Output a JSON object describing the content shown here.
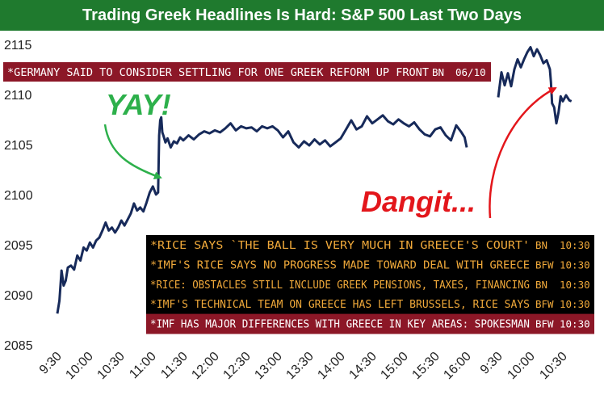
{
  "chart_data": {
    "type": "line",
    "title": "Trading Greek Headlines Is Hard: S&P 500 Last Two Days",
    "xlabel": "",
    "ylabel": "",
    "ylim": [
      2085,
      2115
    ],
    "yticks": [
      2085,
      2090,
      2095,
      2100,
      2105,
      2110,
      2115
    ],
    "xticks": [
      "9:30",
      "10:00",
      "10:30",
      "11:00",
      "11:30",
      "12:00",
      "12:30",
      "13:00",
      "13:30",
      "14:00",
      "14:30",
      "15:00",
      "15:30",
      "16:00",
      "9:30",
      "10:00",
      "10:30"
    ],
    "grid": false,
    "legend": "none",
    "line_color": "#172a5a",
    "series": [
      {
        "name": "",
        "segments": [
          {
            "day": 1,
            "points": [
              [
                "9:30",
                2088.2
              ],
              [
                "9:32",
                2089.5
              ],
              [
                "9:34",
                2092.5
              ],
              [
                "9:36",
                2091.0
              ],
              [
                "9:38",
                2091.5
              ],
              [
                "9:40",
                2092.8
              ],
              [
                "9:43",
                2093.0
              ],
              [
                "9:46",
                2092.6
              ],
              [
                "9:49",
                2094.0
              ],
              [
                "9:52",
                2093.5
              ],
              [
                "9:55",
                2094.8
              ],
              [
                "9:58",
                2094.5
              ],
              [
                "10:01",
                2095.3
              ],
              [
                "10:04",
                2094.8
              ],
              [
                "10:07",
                2095.5
              ],
              [
                "10:10",
                2095.8
              ],
              [
                "10:13",
                2096.5
              ],
              [
                "10:16",
                2097.3
              ],
              [
                "10:19",
                2096.5
              ],
              [
                "10:22",
                2096.8
              ],
              [
                "10:25",
                2096.3
              ],
              [
                "10:28",
                2096.8
              ],
              [
                "10:31",
                2097.5
              ],
              [
                "10:34",
                2097.0
              ],
              [
                "10:37",
                2097.6
              ],
              [
                "10:40",
                2098.2
              ],
              [
                "10:43",
                2099.2
              ],
              [
                "10:46",
                2098.5
              ],
              [
                "10:49",
                2098.8
              ],
              [
                "10:52",
                2098.4
              ],
              [
                "10:55",
                2099.3
              ],
              [
                "10:58",
                2100.3
              ],
              [
                "11:01",
                2100.9
              ],
              [
                "11:04",
                2100.1
              ],
              [
                "11:06",
                2100.3
              ],
              [
                "11:07",
                2106.0
              ],
              [
                "11:08",
                2107.5
              ],
              [
                "11:09",
                2107.8
              ],
              [
                "11:10",
                2106.3
              ],
              [
                "11:11",
                2106.0
              ],
              [
                "11:13",
                2105.3
              ],
              [
                "11:15",
                2105.7
              ],
              [
                "11:18",
                2104.8
              ],
              [
                "11:21",
                2105.4
              ],
              [
                "11:24",
                2105.2
              ],
              [
                "11:27",
                2105.8
              ],
              [
                "11:30",
                2105.5
              ],
              [
                "11:35",
                2106.0
              ],
              [
                "11:40",
                2105.6
              ],
              [
                "11:45",
                2106.1
              ],
              [
                "11:50",
                2106.4
              ],
              [
                "11:55",
                2106.2
              ],
              [
                "12:00",
                2106.5
              ],
              [
                "12:05",
                2106.3
              ],
              [
                "12:10",
                2106.7
              ],
              [
                "12:15",
                2107.2
              ],
              [
                "12:20",
                2106.5
              ],
              [
                "12:25",
                2106.9
              ],
              [
                "12:30",
                2106.7
              ],
              [
                "12:35",
                2106.8
              ],
              [
                "12:40",
                2106.4
              ],
              [
                "12:45",
                2106.9
              ],
              [
                "12:50",
                2106.7
              ],
              [
                "12:55",
                2106.9
              ],
              [
                "13:00",
                2106.5
              ],
              [
                "13:05",
                2105.8
              ],
              [
                "13:10",
                2106.4
              ],
              [
                "13:15",
                2105.3
              ],
              [
                "13:20",
                2104.8
              ],
              [
                "13:25",
                2105.4
              ],
              [
                "13:30",
                2105.0
              ],
              [
                "13:35",
                2105.6
              ],
              [
                "13:40",
                2105.1
              ],
              [
                "13:45",
                2105.5
              ],
              [
                "13:50",
                2104.9
              ],
              [
                "13:55",
                2105.3
              ],
              [
                "14:00",
                2105.7
              ],
              [
                "14:05",
                2106.6
              ],
              [
                "14:10",
                2107.5
              ],
              [
                "14:15",
                2106.6
              ],
              [
                "14:20",
                2106.9
              ],
              [
                "14:25",
                2107.9
              ],
              [
                "14:30",
                2107.2
              ],
              [
                "14:35",
                2107.6
              ],
              [
                "14:40",
                2108.0
              ],
              [
                "14:45",
                2107.4
              ],
              [
                "14:50",
                2107.1
              ],
              [
                "14:55",
                2107.6
              ],
              [
                "15:00",
                2107.2
              ],
              [
                "15:05",
                2106.9
              ],
              [
                "15:10",
                2107.3
              ],
              [
                "15:15",
                2106.6
              ],
              [
                "15:20",
                2106.1
              ],
              [
                "15:25",
                2105.9
              ],
              [
                "15:30",
                2106.6
              ],
              [
                "15:35",
                2106.8
              ],
              [
                "15:40",
                2106.0
              ],
              [
                "15:45",
                2105.5
              ],
              [
                "15:50",
                2107.0
              ],
              [
                "15:55",
                2106.3
              ],
              [
                "15:58",
                2105.8
              ],
              [
                "16:00",
                2104.8
              ]
            ]
          },
          {
            "day": 2,
            "points": [
              [
                "9:30",
                2109.8
              ],
              [
                "9:33",
                2112.3
              ],
              [
                "9:36",
                2111.0
              ],
              [
                "9:39",
                2112.2
              ],
              [
                "9:42",
                2110.9
              ],
              [
                "9:45",
                2112.6
              ],
              [
                "9:48",
                2113.6
              ],
              [
                "9:51",
                2112.8
              ],
              [
                "9:54",
                2113.6
              ],
              [
                "9:57",
                2114.3
              ],
              [
                "10:00",
                2114.8
              ],
              [
                "10:03",
                2113.9
              ],
              [
                "10:06",
                2114.6
              ],
              [
                "10:09",
                2114.0
              ],
              [
                "10:12",
                2113.2
              ],
              [
                "10:15",
                2113.5
              ],
              [
                "10:18",
                2112.6
              ],
              [
                "10:19",
                2111.3
              ],
              [
                "10:20",
                2109.2
              ],
              [
                "10:22",
                2108.8
              ],
              [
                "10:24",
                2107.2
              ],
              [
                "10:26",
                2108.3
              ],
              [
                "10:28",
                2109.9
              ],
              [
                "10:30",
                2109.4
              ],
              [
                "10:33",
                2110.0
              ],
              [
                "10:36",
                2109.5
              ],
              [
                "10:38",
                2109.4
              ]
            ]
          }
        ]
      }
    ],
    "annotations": [
      {
        "text": "YAY!",
        "color": "#2db04b"
      },
      {
        "text": "Dangit...",
        "color": "#e3161b"
      }
    ]
  },
  "headlines": {
    "top": {
      "text": "*GERMANY SAID TO CONSIDER SETTLING FOR ONE GREEK REFORM UP FRONT",
      "source": "BN",
      "time": "06/10",
      "bg": "#8c1727",
      "color": "#ffffff"
    },
    "box": [
      {
        "text": "*RICE SAYS `THE BALL IS VERY MUCH IN GREECE'S COURT'",
        "source": "BN",
        "time": "10:30",
        "bg": "#000000",
        "color": "#f0a93a"
      },
      {
        "text": "*IMF'S RICE SAYS NO PROGRESS MADE TOWARD DEAL WITH GREECE",
        "source": "BFW",
        "time": "10:30",
        "bg": "#000000",
        "color": "#f0a93a"
      },
      {
        "text": "*RICE: OBSTACLES STILL INCLUDE GREEK PENSIONS, TAXES, FINANCING",
        "source": "BN",
        "time": "10:30",
        "bg": "#000000",
        "color": "#f0a93a"
      },
      {
        "text": "*IMF'S TECHNICAL TEAM ON GREECE HAS LEFT BRUSSELS, RICE SAYS",
        "source": "BFW",
        "time": "10:30",
        "bg": "#000000",
        "color": "#f0a93a"
      },
      {
        "text": "*IMF HAS MAJOR DIFFERENCES WITH GREECE IN KEY AREAS: SPOKESMAN",
        "source": "BFW",
        "time": "10:30",
        "bg": "#8c1727",
        "color": "#ffffff"
      }
    ]
  },
  "colors": {
    "title_bg": "#1f7a2e",
    "title_fg": "#ffffff",
    "green_arrow": "#2db04b",
    "red_arrow": "#e3161b"
  }
}
